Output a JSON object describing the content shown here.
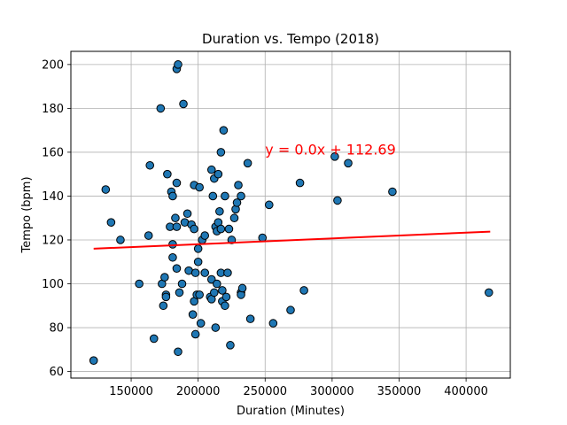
{
  "chart_data": {
    "type": "scatter",
    "title": "Duration vs. Tempo (2018)",
    "xlabel": "Duration (Minutes)",
    "ylabel": "Tempo (bpm)",
    "xlim": [
      105000,
      433000
    ],
    "ylim": [
      57,
      206
    ],
    "x_ticks": [
      150000,
      200000,
      250000,
      300000,
      350000,
      400000
    ],
    "y_ticks": [
      60,
      80,
      100,
      120,
      140,
      160,
      180,
      200
    ],
    "grid": true,
    "point_color": "#1f77b4",
    "point_edge_color": "#000000",
    "regression": {
      "label": "y = 0.0x + 112.69",
      "label_position": [
        250000,
        161
      ],
      "color": "#ff0000",
      "x": [
        122000,
        418000
      ],
      "y": [
        116.0,
        123.8
      ]
    },
    "points": [
      [
        122000,
        65
      ],
      [
        131000,
        143
      ],
      [
        135000,
        128
      ],
      [
        142000,
        120
      ],
      [
        156000,
        100
      ],
      [
        163000,
        122
      ],
      [
        164000,
        154
      ],
      [
        167000,
        75
      ],
      [
        172000,
        180
      ],
      [
        173000,
        100
      ],
      [
        174000,
        90
      ],
      [
        175000,
        103
      ],
      [
        176000,
        95
      ],
      [
        176000,
        94
      ],
      [
        177000,
        150
      ],
      [
        179000,
        126
      ],
      [
        180000,
        142
      ],
      [
        181000,
        112
      ],
      [
        181000,
        140
      ],
      [
        181000,
        118
      ],
      [
        183000,
        130
      ],
      [
        184000,
        107
      ],
      [
        184000,
        146
      ],
      [
        184000,
        126
      ],
      [
        184000,
        198
      ],
      [
        185000,
        200
      ],
      [
        185000,
        69
      ],
      [
        186000,
        96
      ],
      [
        188000,
        100
      ],
      [
        189000,
        182
      ],
      [
        190000,
        128
      ],
      [
        192000,
        132
      ],
      [
        193000,
        106
      ],
      [
        195000,
        127
      ],
      [
        196000,
        86
      ],
      [
        197000,
        92
      ],
      [
        197000,
        125
      ],
      [
        197000,
        145
      ],
      [
        198000,
        105
      ],
      [
        198000,
        77
      ],
      [
        199000,
        95
      ],
      [
        200000,
        116
      ],
      [
        200000,
        110
      ],
      [
        201000,
        144
      ],
      [
        201000,
        95
      ],
      [
        202000,
        82
      ],
      [
        203000,
        120
      ],
      [
        205000,
        105
      ],
      [
        205000,
        122
      ],
      [
        209000,
        94
      ],
      [
        210000,
        102
      ],
      [
        210000,
        93
      ],
      [
        210000,
        152
      ],
      [
        211000,
        140
      ],
      [
        212000,
        148
      ],
      [
        212000,
        96
      ],
      [
        213000,
        126
      ],
      [
        213000,
        80
      ],
      [
        214000,
        124
      ],
      [
        214000,
        100
      ],
      [
        215000,
        150
      ],
      [
        215000,
        128
      ],
      [
        216000,
        133
      ],
      [
        217000,
        105
      ],
      [
        217000,
        125
      ],
      [
        217000,
        160
      ],
      [
        218000,
        92
      ],
      [
        218000,
        97
      ],
      [
        219000,
        170
      ],
      [
        220000,
        90
      ],
      [
        220000,
        140
      ],
      [
        221000,
        94
      ],
      [
        222000,
        105
      ],
      [
        223000,
        125
      ],
      [
        224000,
        72
      ],
      [
        225000,
        120
      ],
      [
        227000,
        130
      ],
      [
        228000,
        134
      ],
      [
        229000,
        137
      ],
      [
        230000,
        145
      ],
      [
        232000,
        140
      ],
      [
        232000,
        96
      ],
      [
        232000,
        95
      ],
      [
        233000,
        98
      ],
      [
        237000,
        155
      ],
      [
        239000,
        84
      ],
      [
        248000,
        121
      ],
      [
        253000,
        136
      ],
      [
        256000,
        82
      ],
      [
        269000,
        88
      ],
      [
        276000,
        146
      ],
      [
        279000,
        97
      ],
      [
        302000,
        158
      ],
      [
        304000,
        138
      ],
      [
        312000,
        155
      ],
      [
        345000,
        142
      ],
      [
        417000,
        96
      ]
    ]
  }
}
